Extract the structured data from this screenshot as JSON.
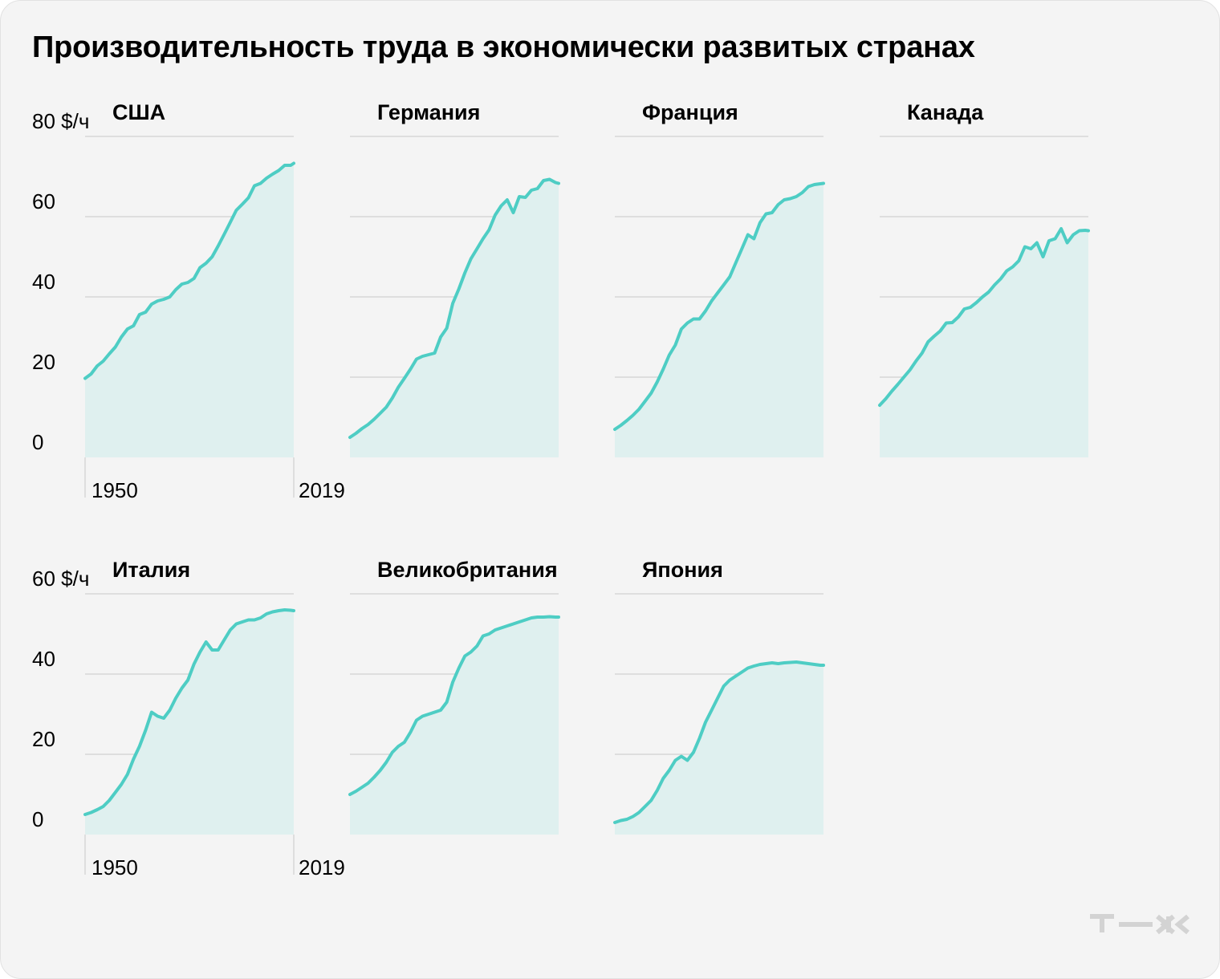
{
  "title": "Производительность труда в экономически развитых странах",
  "logo_text": "т—ж",
  "colors": {
    "line": "#4ecdc4",
    "area": "#dff0ef",
    "grid": "#d6d6d6",
    "background": "#f4f4f4"
  },
  "chart_data": [
    {
      "type": "area",
      "title": "США",
      "unit": "$/ч",
      "ylim": [
        0,
        80
      ],
      "yticks": [
        0,
        20,
        40,
        60,
        80
      ],
      "xlim": [
        1950,
        2019
      ],
      "xticks": [
        1950,
        2019
      ],
      "series": [
        {
          "name": "США",
          "x": [
            1950,
            1952,
            1954,
            1956,
            1958,
            1960,
            1962,
            1964,
            1966,
            1968,
            1970,
            1972,
            1974,
            1976,
            1978,
            1980,
            1982,
            1984,
            1986,
            1988,
            1990,
            1992,
            1994,
            1996,
            1998,
            2000,
            2002,
            2004,
            2006,
            2008,
            2010,
            2012,
            2014,
            2016,
            2018,
            2019
          ],
          "values": [
            19.7,
            20.8,
            22.8,
            24,
            25.8,
            27.5,
            30,
            32,
            32.8,
            35.6,
            36.2,
            38.2,
            39,
            39.4,
            40,
            41.8,
            43.2,
            43.6,
            44.6,
            47.3,
            48.4,
            50,
            52.7,
            55.6,
            58.6,
            61.6,
            63.1,
            64.7,
            67.7,
            68.3,
            69.6,
            70.6,
            71.5,
            72.8,
            72.8,
            73.3
          ]
        }
      ]
    },
    {
      "type": "area",
      "title": "Германия",
      "unit": "$/ч",
      "ylim": [
        0,
        80
      ],
      "yticks": [
        0,
        20,
        40,
        60,
        80
      ],
      "xlim": [
        1950,
        2019
      ],
      "xticks": [
        1950,
        2019
      ],
      "series": [
        {
          "name": "Германия",
          "x": [
            1950,
            1952,
            1954,
            1956,
            1958,
            1960,
            1962,
            1964,
            1966,
            1968,
            1970,
            1972,
            1974,
            1976,
            1978,
            1980,
            1982,
            1984,
            1986,
            1988,
            1990,
            1992,
            1994,
            1996,
            1998,
            2000,
            2002,
            2004,
            2006,
            2008,
            2010,
            2012,
            2014,
            2016,
            2018,
            2019
          ],
          "values": [
            5,
            6,
            7.2,
            8.2,
            9.5,
            11,
            12.5,
            14.8,
            17.5,
            19.7,
            22,
            24.5,
            25.2,
            25.6,
            26,
            30,
            32.2,
            38.4,
            42,
            46,
            49.5,
            52,
            54.5,
            56.7,
            60.4,
            62.7,
            64.2,
            61,
            65,
            64.8,
            66.6,
            67,
            69,
            69.3,
            68.5,
            68.3
          ]
        }
      ]
    },
    {
      "type": "area",
      "title": "Франция",
      "unit": "$/ч",
      "ylim": [
        0,
        80
      ],
      "yticks": [
        0,
        20,
        40,
        60,
        80
      ],
      "xlim": [
        1950,
        2019
      ],
      "xticks": [
        1950,
        2019
      ],
      "series": [
        {
          "name": "Франция",
          "x": [
            1950,
            1952,
            1954,
            1956,
            1958,
            1960,
            1962,
            1964,
            1966,
            1968,
            1970,
            1972,
            1974,
            1976,
            1978,
            1980,
            1982,
            1984,
            1986,
            1988,
            1990,
            1992,
            1994,
            1996,
            1998,
            2000,
            2002,
            2004,
            2006,
            2008,
            2010,
            2012,
            2014,
            2016,
            2018,
            2019
          ],
          "values": [
            7,
            8,
            9.2,
            10.5,
            12,
            14,
            16,
            18.8,
            22,
            25.5,
            28,
            32,
            33.5,
            34.5,
            34.5,
            36.5,
            39,
            41,
            43,
            45,
            48.5,
            52,
            55.5,
            54.5,
            58.5,
            60.7,
            61,
            63,
            64.2,
            64.5,
            65,
            66,
            67.5,
            68,
            68.2,
            68.3
          ]
        }
      ]
    },
    {
      "type": "area",
      "title": "Канада",
      "unit": "$/ч",
      "ylim": [
        0,
        80
      ],
      "yticks": [
        0,
        20,
        40,
        60,
        80
      ],
      "xlim": [
        1950,
        2019
      ],
      "xticks": [
        1950,
        2019
      ],
      "series": [
        {
          "name": "Канада",
          "x": [
            1950,
            1952,
            1954,
            1956,
            1958,
            1960,
            1962,
            1964,
            1966,
            1968,
            1970,
            1972,
            1974,
            1976,
            1978,
            1980,
            1982,
            1984,
            1986,
            1988,
            1990,
            1992,
            1994,
            1996,
            1998,
            2000,
            2002,
            2004,
            2006,
            2008,
            2010,
            2012,
            2014,
            2016,
            2018,
            2019
          ],
          "values": [
            13,
            14.6,
            16.5,
            18.2,
            20,
            21.8,
            24,
            26,
            28.8,
            30.2,
            31.5,
            33.5,
            33.6,
            35,
            37,
            37.4,
            38.6,
            40,
            41.2,
            43,
            44.5,
            46.5,
            47.5,
            49,
            52.5,
            52,
            53.5,
            50,
            54,
            54.5,
            57,
            53.5,
            55.5,
            56.5,
            56.6,
            56.5
          ]
        }
      ]
    },
    {
      "type": "area",
      "title": "Италия",
      "unit": "$/ч",
      "ylim": [
        0,
        60
      ],
      "yticks": [
        0,
        20,
        40,
        60
      ],
      "xlim": [
        1950,
        2019
      ],
      "xticks": [
        1950,
        2019
      ],
      "series": [
        {
          "name": "Италия",
          "x": [
            1950,
            1952,
            1954,
            1956,
            1958,
            1960,
            1962,
            1964,
            1966,
            1968,
            1970,
            1972,
            1974,
            1976,
            1978,
            1980,
            1982,
            1984,
            1986,
            1988,
            1990,
            1992,
            1994,
            1996,
            1998,
            2000,
            2002,
            2004,
            2006,
            2008,
            2010,
            2012,
            2014,
            2016,
            2018,
            2019
          ],
          "values": [
            5,
            5.5,
            6.2,
            7,
            8.5,
            10.5,
            12.5,
            15,
            18.8,
            22,
            26,
            30.5,
            29.5,
            29,
            31,
            34,
            36.5,
            38.5,
            42.5,
            45.5,
            48,
            46,
            46,
            48.5,
            51,
            52.5,
            53,
            53.5,
            53.5,
            54,
            55,
            55.5,
            55.8,
            56,
            55.9,
            55.8
          ]
        }
      ]
    },
    {
      "type": "area",
      "title": "Великобритания",
      "unit": "$/ч",
      "ylim": [
        0,
        60
      ],
      "yticks": [
        0,
        20,
        40,
        60
      ],
      "xlim": [
        1950,
        2019
      ],
      "xticks": [
        1950,
        2019
      ],
      "series": [
        {
          "name": "Великобритания",
          "x": [
            1950,
            1952,
            1954,
            1956,
            1958,
            1960,
            1962,
            1964,
            1966,
            1968,
            1970,
            1972,
            1974,
            1976,
            1978,
            1980,
            1982,
            1984,
            1986,
            1988,
            1990,
            1992,
            1994,
            1996,
            1998,
            2000,
            2002,
            2004,
            2006,
            2008,
            2010,
            2012,
            2014,
            2016,
            2018,
            2019
          ],
          "values": [
            10,
            10.8,
            11.8,
            12.8,
            14.3,
            16,
            18,
            20.5,
            22,
            23,
            25.5,
            28.5,
            29.5,
            30,
            30.5,
            31,
            33,
            38,
            41.5,
            44.5,
            45.5,
            47,
            49.5,
            50,
            51,
            51.5,
            52,
            52.5,
            53,
            53.5,
            54,
            54.2,
            54.2,
            54.3,
            54.2,
            54.2
          ]
        }
      ]
    },
    {
      "type": "area",
      "title": "Япония",
      "unit": "$/ч",
      "ylim": [
        0,
        60
      ],
      "yticks": [
        0,
        20,
        40,
        60
      ],
      "xlim": [
        1950,
        2019
      ],
      "xticks": [
        1950,
        2019
      ],
      "series": [
        {
          "name": "Япония",
          "x": [
            1950,
            1952,
            1954,
            1956,
            1958,
            1960,
            1962,
            1964,
            1966,
            1968,
            1970,
            1972,
            1974,
            1976,
            1978,
            1980,
            1982,
            1984,
            1986,
            1988,
            1990,
            1992,
            1994,
            1996,
            1998,
            2000,
            2002,
            2004,
            2006,
            2008,
            2010,
            2012,
            2014,
            2016,
            2018,
            2019
          ],
          "values": [
            3,
            3.5,
            3.8,
            4.5,
            5.5,
            7,
            8.5,
            11,
            14,
            16,
            18.5,
            19.5,
            18.5,
            20.5,
            24,
            28,
            31,
            34,
            37,
            38.5,
            39.5,
            40.5,
            41.5,
            42,
            42.4,
            42.6,
            42.8,
            42.6,
            42.8,
            42.9,
            43,
            42.8,
            42.6,
            42.4,
            42.2,
            42.2
          ]
        }
      ]
    }
  ]
}
